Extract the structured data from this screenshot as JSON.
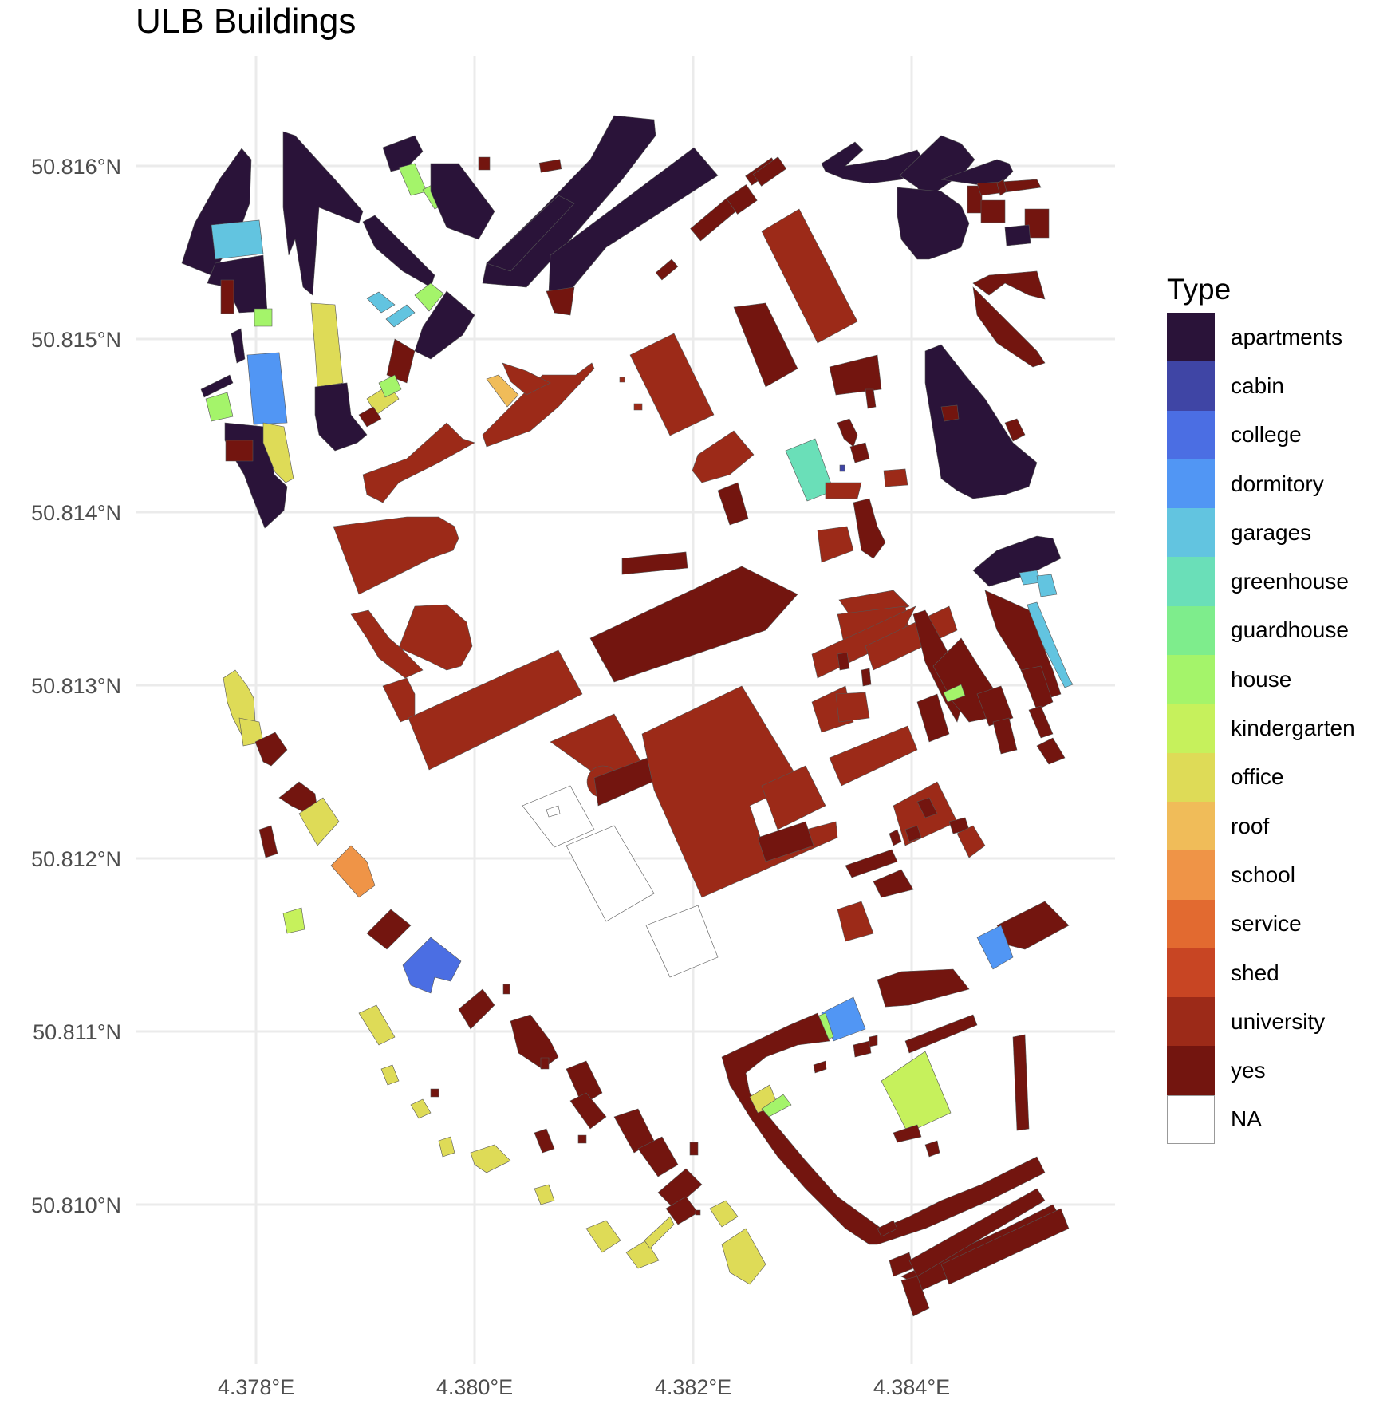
{
  "title": "ULB Buildings",
  "map": {
    "x_ticks": [
      "4.378°E",
      "4.380°E",
      "4.382°E",
      "4.384°E"
    ],
    "y_ticks": [
      "50.816°N",
      "50.815°N",
      "50.814°N",
      "50.813°N",
      "50.812°N",
      "50.811°N",
      "50.810°N"
    ]
  },
  "legend": {
    "title": "Type",
    "items": [
      {
        "label": "apartments",
        "color": "#2a1339"
      },
      {
        "label": "cabin",
        "color": "#3f45a5"
      },
      {
        "label": "college",
        "color": "#4b6ee3"
      },
      {
        "label": "dormitory",
        "color": "#5196f4"
      },
      {
        "label": "garages",
        "color": "#62c4e0"
      },
      {
        "label": "greenhouse",
        "color": "#6adfb8"
      },
      {
        "label": "guardhouse",
        "color": "#7eed8c"
      },
      {
        "label": "house",
        "color": "#a4f46a"
      },
      {
        "label": "kindergarten",
        "color": "#c6f15c"
      },
      {
        "label": "office",
        "color": "#dedb57"
      },
      {
        "label": "roof",
        "color": "#f0bc59"
      },
      {
        "label": "school",
        "color": "#ef9447"
      },
      {
        "label": "service",
        "color": "#e26a30"
      },
      {
        "label": "shed",
        "color": "#c84523"
      },
      {
        "label": "university",
        "color": "#9c2a18"
      },
      {
        "label": "yes",
        "color": "#73150f"
      },
      {
        "label": "NA",
        "color": "#ffffff"
      }
    ]
  }
}
